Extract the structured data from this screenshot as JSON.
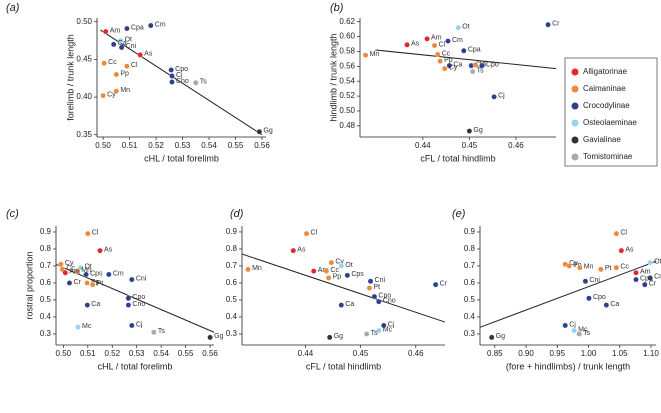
{
  "legend": [
    {
      "name": "Alligatorinae",
      "color": "#e3262b"
    },
    {
      "name": "Caimaninae",
      "color": "#ec8a3b"
    },
    {
      "name": "Crocodylinae",
      "color": "#2d3f8f"
    },
    {
      "name": "Osteolaeminae",
      "color": "#93d4ef"
    },
    {
      "name": "Gavialinae",
      "color": "#333333"
    },
    {
      "name": "Tomistominae",
      "color": "#a9a9a9"
    }
  ],
  "chart_data": [
    {
      "type": "scatter",
      "panel": "(a)",
      "xlabel": "cHL / total forelimb",
      "ylabel": "forelimb / trunk length",
      "xlim": [
        0.4977,
        0.5615
      ],
      "ylim": [
        0.347,
        0.505
      ],
      "xticks": [
        {
          "value": 0.5,
          "label": "0.50"
        },
        0.51,
        0.52,
        0.53,
        0.54,
        0.55,
        0.56
      ],
      "yticks": [
        0.35,
        {
          "value": 0.4,
          "label": "0.40"
        },
        0.45,
        {
          "value": 0.5,
          "label": "0.50"
        }
      ],
      "labels": [
        "Am",
        "Cpa",
        "Cm",
        "Ot",
        "Ca",
        "Cni",
        "As",
        "Cc",
        "Cl",
        "Pp",
        "Cpo",
        "Cj",
        "Cno",
        "Ts",
        "Mn",
        "Cy",
        "Gg"
      ],
      "groups": [
        "Alligatorinae",
        "Crocodylinae",
        "Crocodylinae",
        "Osteolaeminae",
        "Crocodylinae",
        "Crocodylinae",
        "Alligatorinae",
        "Caimaninae",
        "Caimaninae",
        "Caimaninae",
        "Crocodylinae",
        "Crocodylinae",
        "Crocodylinae",
        "Tomistominae",
        "Caimaninae",
        "Caimaninae",
        "Gavialinae"
      ],
      "x": [
        0.501,
        0.509,
        0.518,
        0.5066,
        0.504,
        0.507,
        0.514,
        0.5004,
        0.509,
        0.505,
        0.5257,
        0.526,
        0.526,
        0.535,
        0.505,
        0.5,
        0.559
      ],
      "y": [
        0.487,
        0.491,
        0.495,
        0.475,
        0.47,
        0.466,
        0.456,
        0.445,
        0.441,
        0.43,
        0.436,
        0.428,
        0.42,
        0.419,
        0.408,
        0.402,
        0.354
      ],
      "fit": {
        "x": [
          0.499,
          0.56
        ],
        "y": [
          0.489,
          0.35
        ]
      }
    },
    {
      "type": "scatter",
      "panel": "(b)",
      "xlabel": "cFL / total hindlimb",
      "ylabel": "hindlimb / trunk length",
      "xlim": [
        0.4265,
        0.4686
      ],
      "ylim": [
        0.465,
        0.625
      ],
      "xticks": [
        0.44,
        0.45,
        0.46
      ],
      "yticks": [
        0.48,
        {
          "value": 0.5,
          "label": "0.50"
        },
        0.52,
        0.54,
        0.56,
        0.58,
        {
          "value": 0.6,
          "label": "0.60"
        },
        0.62
      ],
      "labels": [
        "Cr",
        "Ot",
        "Am",
        "As",
        "Cl",
        "Cm",
        "Cc",
        "Cpa",
        "Mn",
        "Pp",
        "Ca",
        "Cy",
        "Cni",
        "Pt",
        "Cpo",
        "Ts",
        "Cj",
        "Gg"
      ],
      "groups": [
        "Crocodylinae",
        "Osteolaeminae",
        "Alligatorinae",
        "Alligatorinae",
        "Caimaninae",
        "Crocodylinae",
        "Caimaninae",
        "Crocodylinae",
        "Caimaninae",
        "Caimaninae",
        "Crocodylinae",
        "Caimaninae",
        "Crocodylinae",
        "Caimaninae",
        "Crocodylinae",
        "Tomistominae",
        "Crocodylinae",
        "Gavialinae"
      ],
      "x": [
        0.4669,
        0.4476,
        0.4409,
        0.4366,
        0.4425,
        0.4454,
        0.4432,
        0.4488,
        0.4277,
        0.4437,
        0.4457,
        0.4447,
        0.4504,
        0.4513,
        0.4527,
        0.4507,
        0.4553,
        0.45
      ],
      "y": [
        0.616,
        0.612,
        0.597,
        0.589,
        0.588,
        0.594,
        0.576,
        0.581,
        0.575,
        0.567,
        0.561,
        0.557,
        0.561,
        0.562,
        0.561,
        0.553,
        0.519,
        0.473
      ],
      "fit": {
        "x": [
          0.4298,
          0.4686
        ],
        "y": [
          0.582,
          0.557
        ]
      }
    },
    {
      "type": "scatter",
      "panel": "(c)",
      "xlabel": "cHL / total forelimb",
      "ylabel": "rostral proportion",
      "xlim": [
        0.497,
        0.5616
      ],
      "ylim": [
        0.235,
        0.935
      ],
      "xticks": [
        {
          "value": 0.5,
          "label": "0.50"
        },
        0.51,
        0.52,
        0.53,
        0.54,
        0.55,
        0.56
      ],
      "yticks": [
        0.3,
        0.4,
        0.5,
        0.6,
        0.7,
        0.8,
        0.9
      ],
      "labels": [
        "Cl",
        "As",
        "Cy",
        "Ot",
        "Cc",
        "Mn",
        "Am",
        "Cps",
        "Cm",
        "Cni",
        "Cr",
        "Pp",
        "Pt",
        "Cpo",
        "Cno",
        "Ca",
        "Mc",
        "Cj",
        "Ts",
        "Gg"
      ],
      "groups": [
        "Caimaninae",
        "Alligatorinae",
        "Caimaninae",
        "Osteolaeminae",
        "Caimaninae",
        "Caimaninae",
        "Alligatorinae",
        "Crocodylinae",
        "Crocodylinae",
        "Crocodylinae",
        "Crocodylinae",
        "Caimaninae",
        "Caimaninae",
        "Crocodylinae",
        "Crocodylinae",
        "Crocodylinae",
        "Osteolaeminae",
        "Crocodylinae",
        "Tomistominae",
        "Gavialinae"
      ],
      "x": [
        0.51,
        0.515,
        0.499,
        0.507,
        0.4996,
        0.5057,
        0.5008,
        0.5093,
        0.5186,
        0.528,
        0.5025,
        0.5097,
        0.512,
        0.5266,
        0.5266,
        0.5098,
        0.506,
        0.528,
        0.537,
        0.56
      ],
      "y": [
        0.89,
        0.79,
        0.71,
        0.69,
        0.68,
        0.67,
        0.66,
        0.65,
        0.65,
        0.62,
        0.6,
        0.6,
        0.59,
        0.51,
        0.47,
        0.47,
        0.34,
        0.35,
        0.31,
        0.28
      ],
      "fit": {
        "x": [
          0.497,
          0.5616
        ],
        "y": [
          0.709,
          0.31
        ]
      }
    },
    {
      "type": "scatter",
      "panel": "(d)",
      "xlabel": "cFL / total hindlimb",
      "xlim": [
        0.4285,
        0.4653
      ],
      "ylim": [
        0.235,
        0.935
      ],
      "xticks": [
        0.44,
        0.45,
        0.46
      ],
      "yticks": [
        0.3,
        0.4,
        0.5,
        0.6,
        0.7,
        0.8,
        0.9
      ],
      "labels": [
        "Cl",
        "As",
        "Cy",
        "Ot",
        "Am",
        "Mn",
        "Cc",
        "Cps",
        "Pp",
        "Cni",
        "Pt",
        "Cpo",
        "Cno",
        "Ca",
        "Cr",
        "Cj",
        "Mc",
        "Ts",
        "Gg"
      ],
      "groups": [
        "Caimaninae",
        "Alligatorinae",
        "Caimaninae",
        "Osteolaeminae",
        "Alligatorinae",
        "Caimaninae",
        "Caimaninae",
        "Crocodylinae",
        "Caimaninae",
        "Crocodylinae",
        "Caimaninae",
        "Crocodylinae",
        "Crocodylinae",
        "Crocodylinae",
        "Crocodylinae",
        "Crocodylinae",
        "Osteolaeminae",
        "Tomistominae",
        "Gavialinae"
      ],
      "x": [
        0.4402,
        0.4378,
        0.4447,
        0.4465,
        0.4415,
        0.4296,
        0.4438,
        0.4476,
        0.4442,
        0.4518,
        0.4516,
        0.4525,
        0.4533,
        0.4465,
        0.4636,
        0.4542,
        0.4533,
        0.4511,
        0.4444
      ],
      "y": [
        0.89,
        0.79,
        0.72,
        0.7,
        0.67,
        0.68,
        0.67,
        0.645,
        0.63,
        0.61,
        0.57,
        0.52,
        0.49,
        0.47,
        0.59,
        0.35,
        0.32,
        0.3,
        0.28
      ],
      "fit": {
        "x": [
          0.4285,
          0.4653
        ],
        "y": [
          0.77,
          0.37
        ]
      }
    },
    {
      "type": "scatter",
      "panel": "(e)",
      "xlabel": "(fore + hindlimbs) / trunk length",
      "xlim": [
        0.8263,
        1.108
      ],
      "ylim": [
        0.235,
        0.935
      ],
      "xticks": [
        0.85,
        {
          "value": 0.9,
          "label": "0.90"
        },
        0.95,
        {
          "value": 1,
          "label": "1.00"
        },
        1.05,
        {
          "value": 1.1,
          "label": "1.10"
        }
      ],
      "yticks": [
        0.3,
        0.4,
        0.5,
        0.6,
        0.7,
        0.8,
        0.9
      ],
      "labels": [
        "Gg",
        "Cl",
        "As",
        "Cy",
        "Pp",
        "Mn",
        "Pt",
        "Cc",
        "Ot",
        "Am",
        "Cm",
        "Cpa",
        "Cr",
        "Cni",
        "Cpo",
        "Ca",
        "Cj",
        "Mc",
        "Ts"
      ],
      "groups": [
        "Gavialinae",
        "Caimaninae",
        "Alligatorinae",
        "Caimaninae",
        "Caimaninae",
        "Caimaninae",
        "Caimaninae",
        "Caimaninae",
        "Osteolaeminae",
        "Alligatorinae",
        "Crocodylinae",
        "Crocodylinae",
        "Crocodylinae",
        "Crocodylinae",
        "Crocodylinae",
        "Crocodylinae",
        "Crocodylinae",
        "Osteolaeminae",
        "Tomistominae"
      ],
      "x": [
        0.845,
        1.0446,
        1.0525,
        0.9627,
        0.969,
        0.986,
        1.0197,
        1.0446,
        1.0985,
        1.076,
        1.0985,
        1.076,
        1.09,
        0.995,
        1.0007,
        1.0285,
        0.9627,
        0.977,
        0.985
      ],
      "y": [
        0.28,
        0.89,
        0.79,
        0.71,
        0.7,
        0.69,
        0.68,
        0.69,
        0.72,
        0.66,
        0.63,
        0.62,
        0.59,
        0.61,
        0.51,
        0.47,
        0.35,
        0.32,
        0.3
      ],
      "fit": {
        "x": [
          0.8263,
          1.108
        ],
        "y": [
          0.339,
          0.727
        ]
      }
    }
  ]
}
